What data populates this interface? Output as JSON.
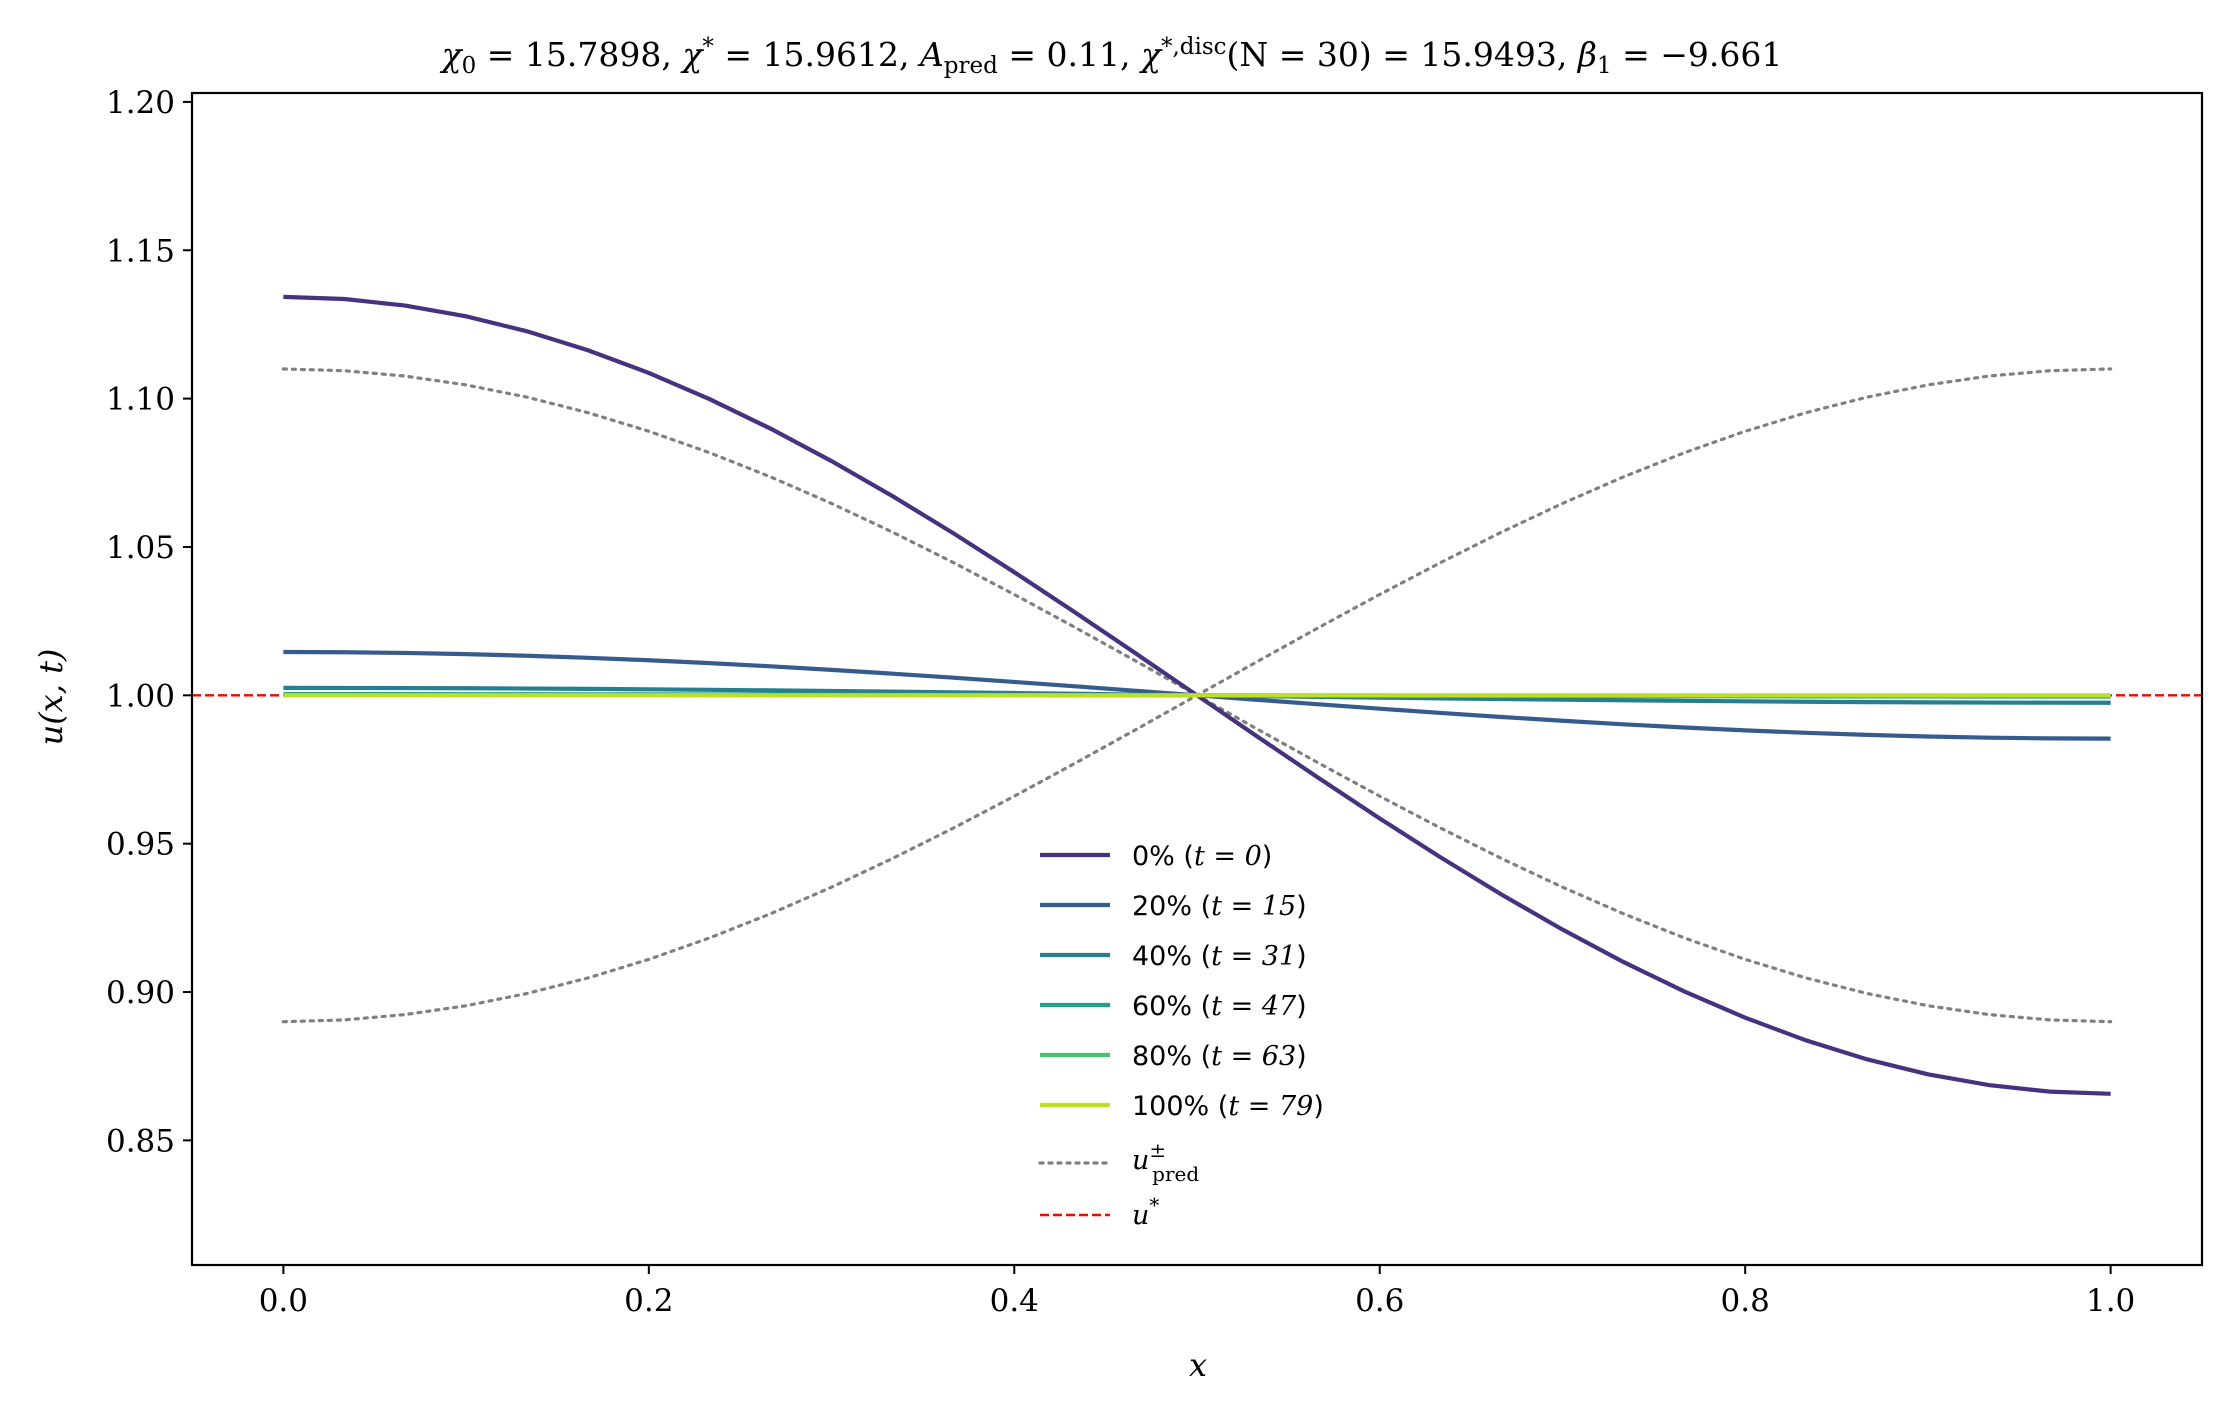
{
  "chart_data": {
    "type": "line",
    "title": "χ₀ = 15.7898,  χ* = 15.9612,  A_pred = 0.11,  χ*,disc(N = 30) = 15.9493,  β₁ = −9.661",
    "title_parts": {
      "chi0": "χ",
      "chi0_sub": "0",
      "chi0_val": " = 15.7898,  ",
      "chistar": "χ",
      "chistar_sup": "*",
      "chistar_val": " = 15.9612,  ",
      "apred": "A",
      "apred_sub": "pred",
      "apred_val": " = 0.11,  ",
      "chidisc": "χ",
      "chidisc_sup": "*,disc",
      "chidisc_val": "(N = 30) = 15.9493,  ",
      "beta": "β",
      "beta_sub": "1",
      "beta_val": " = −9.661"
    },
    "xlabel": "x",
    "ylabel": "u(x, t)",
    "xlim": [
      -0.05,
      1.05
    ],
    "ylim": [
      0.808,
      1.203
    ],
    "xticks": [
      "0.0",
      "0.2",
      "0.4",
      "0.6",
      "0.8",
      "1.0"
    ],
    "yticks": [
      "0.85",
      "0.90",
      "0.95",
      "1.00",
      "1.05",
      "1.10",
      "1.15",
      "1.20"
    ],
    "grid": false,
    "legend_position": "lower center",
    "series": [
      {
        "name": "0% (t = 0)",
        "legend_main": "0% (",
        "legend_math": "t = 0",
        "legend_end": ")",
        "color": "#46327e",
        "style": "solid",
        "amplitude": 0.1343
      },
      {
        "name": "20% (t = 15)",
        "legend_main": "20% (",
        "legend_math": "t = 15",
        "legend_end": ")",
        "color": "#365c8d",
        "style": "solid",
        "amplitude": 0.0146
      },
      {
        "name": "40% (t = 31)",
        "legend_main": "40% (",
        "legend_math": "t = 31",
        "legend_end": ")",
        "color": "#277f8e",
        "style": "solid",
        "amplitude": 0.0025
      },
      {
        "name": "60% (t = 47)",
        "legend_main": "60% (",
        "legend_math": "t = 47",
        "legend_end": ")",
        "color": "#1fa187",
        "style": "solid",
        "amplitude": 0.0004
      },
      {
        "name": "80% (t = 63)",
        "legend_main": "80% (",
        "legend_math": "t = 63",
        "legend_end": ")",
        "color": "#4ac16d",
        "style": "solid",
        "amplitude": 0.0001
      },
      {
        "name": "100% (t = 79)",
        "legend_main": "100% (",
        "legend_math": "t = 79",
        "legend_end": ")",
        "color": "#bddf26",
        "style": "solid",
        "amplitude": 0.0
      }
    ],
    "profile": "u(x) = 1 + amplitude · cos(π x)",
    "prediction": {
      "name": "u±pred",
      "legend_math": "u",
      "legend_sup": "±",
      "legend_sub": "pred",
      "color": "#808080",
      "style": "dotted",
      "amplitude": 0.11,
      "upper_at_x0": 1.11,
      "lower_at_x0": 0.89
    },
    "reference": {
      "name": "u*",
      "legend_math": "u",
      "legend_sup": "*",
      "color": "#ff0000",
      "style": "dashed",
      "value": 1.0
    },
    "x_samples": 31
  }
}
